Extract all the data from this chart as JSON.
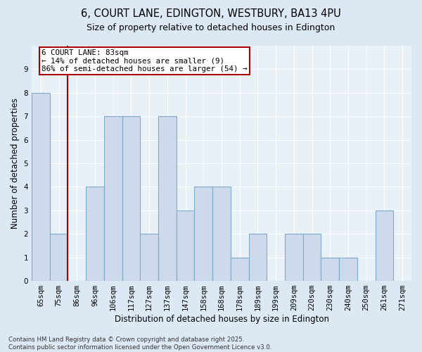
{
  "title1": "6, COURT LANE, EDINGTON, WESTBURY, BA13 4PU",
  "title2": "Size of property relative to detached houses in Edington",
  "xlabel": "Distribution of detached houses by size in Edington",
  "ylabel": "Number of detached properties",
  "categories": [
    "65sqm",
    "75sqm",
    "86sqm",
    "96sqm",
    "106sqm",
    "117sqm",
    "127sqm",
    "137sqm",
    "147sqm",
    "158sqm",
    "168sqm",
    "178sqm",
    "189sqm",
    "199sqm",
    "209sqm",
    "220sqm",
    "230sqm",
    "240sqm",
    "250sqm",
    "261sqm",
    "271sqm"
  ],
  "values": [
    8,
    2,
    0,
    4,
    7,
    7,
    2,
    7,
    3,
    4,
    4,
    1,
    2,
    0,
    2,
    2,
    1,
    1,
    0,
    3,
    0
  ],
  "bar_color": "#ccdaeb",
  "bar_edge_color": "#7eaac8",
  "annotation_box_line1": "6 COURT LANE: 83sqm",
  "annotation_box_line2": "← 14% of detached houses are smaller (9)",
  "annotation_box_line3": "86% of semi-detached houses are larger (54) →",
  "annotation_box_color": "#ffffff",
  "annotation_box_edge_color": "#aa0000",
  "vline_color": "#aa0000",
  "vline_x": 1.5,
  "ylim": [
    0,
    10
  ],
  "yticks": [
    0,
    1,
    2,
    3,
    4,
    5,
    6,
    7,
    8,
    9,
    10
  ],
  "background_color": "#dde8f5",
  "plot_bg_color": "#e8f0f8",
  "grid_color": "#ffffff",
  "footer_text": "Contains HM Land Registry data © Crown copyright and database right 2025.\nContains public sector information licensed under the Open Government Licence v3.0.",
  "annotation_fontsize": 7.8,
  "title_fontsize": 10.5,
  "subtitle_fontsize": 9.0,
  "xlabel_fontsize": 8.5,
  "ylabel_fontsize": 8.5,
  "tick_fontsize": 7.5,
  "footer_fontsize": 6.2
}
